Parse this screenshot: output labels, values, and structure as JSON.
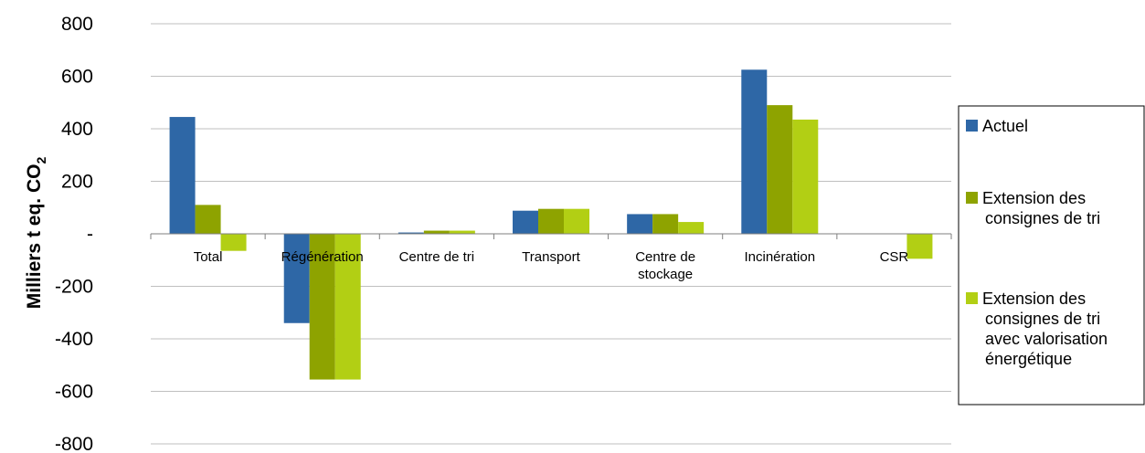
{
  "chart_data": {
    "type": "bar",
    "categories": [
      "Total",
      "Régénération",
      "Centre de tri",
      "Transport",
      "Centre de stockage",
      "Incinération",
      "CSR"
    ],
    "series": [
      {
        "name": "Actuel",
        "values": [
          445,
          -340,
          5,
          88,
          75,
          625,
          0
        ],
        "color": "#2e67a6"
      },
      {
        "name": "Extension des consignes de tri",
        "values": [
          110,
          -555,
          12,
          95,
          75,
          490,
          0
        ],
        "color": "#8ea300"
      },
      {
        "name": "Extension des consignes de tri avec valorisation énergétique",
        "values": [
          -65,
          -555,
          12,
          95,
          45,
          435,
          -95
        ],
        "color": "#b2cf14"
      }
    ],
    "title": "",
    "xlabel": "",
    "ylabel": "Milliers t eq. CO",
    "ylabel_subscript": "2",
    "ylim": [
      -800,
      800
    ],
    "yticks": [
      800,
      600,
      400,
      200,
      0,
      -200,
      -400,
      -600,
      -800
    ],
    "ytick_labels": [
      "800",
      "600",
      "400",
      "200",
      "-",
      "-200",
      "-400",
      "-600",
      "-800"
    ],
    "category_label_lines": [
      [
        "Total"
      ],
      [
        "Régénération"
      ],
      [
        "Centre de tri"
      ],
      [
        "Transport"
      ],
      [
        "Centre de",
        "stockage"
      ],
      [
        "Incinération"
      ],
      [
        "CSR"
      ]
    ],
    "legend_label_lines": [
      [
        "Actuel"
      ],
      [
        "Extension des",
        "consignes de tri"
      ],
      [
        "Extension des",
        "consignes de tri",
        "avec valorisation",
        "énergétique"
      ]
    ],
    "legend_position": "right",
    "grid": true
  }
}
